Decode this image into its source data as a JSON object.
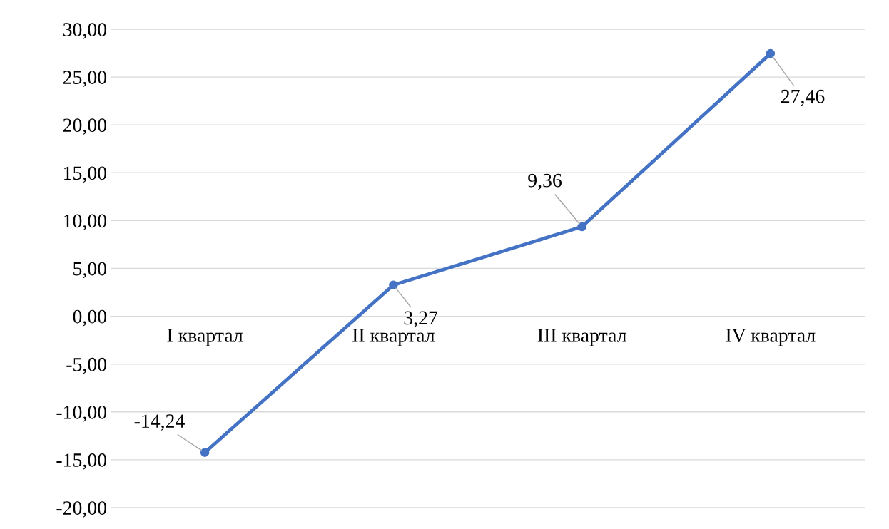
{
  "chart_data": {
    "type": "line",
    "categories": [
      "I квартал",
      "II квартал",
      "III квартал",
      "IV квартал"
    ],
    "series": [
      {
        "color": "#4472c4",
        "values": [
          -14.24,
          3.27,
          9.36,
          27.46
        ],
        "value_labels": [
          "-14,24",
          "3,27",
          "9,36",
          "27,46"
        ]
      }
    ],
    "ylim": [
      -20,
      30
    ],
    "yticks": [
      {
        "value": -20,
        "label": "-20,00"
      },
      {
        "value": -15,
        "label": "-15,00"
      },
      {
        "value": -10,
        "label": "-10,00"
      },
      {
        "value": -5,
        "label": "-5,00"
      },
      {
        "value": 0,
        "label": "0,00"
      },
      {
        "value": 5,
        "label": "5,00"
      },
      {
        "value": 10,
        "label": "10,00"
      },
      {
        "value": 15,
        "label": "15,00"
      },
      {
        "value": 20,
        "label": "20,00"
      },
      {
        "value": 25,
        "label": "25,00"
      },
      {
        "value": 30,
        "label": "30,00"
      }
    ],
    "grid": "y",
    "marker": "circle",
    "line_style": "solid",
    "legend": false
  }
}
